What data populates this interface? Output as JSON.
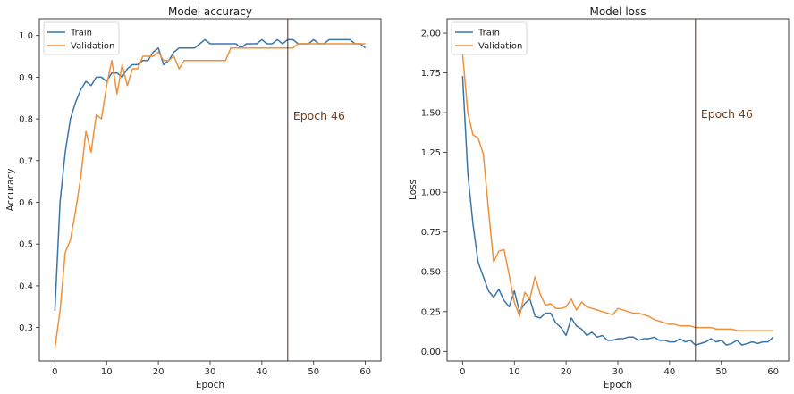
{
  "chart_data": [
    {
      "type": "line",
      "title": "Model accuracy",
      "xlabel": "Epoch",
      "ylabel": "Accuracy",
      "xlim": [
        -3,
        63
      ],
      "ylim": [
        0.22,
        1.04
      ],
      "xticks": [
        0,
        10,
        20,
        30,
        40,
        50,
        60
      ],
      "yticks": [
        0.3,
        0.4,
        0.5,
        0.6,
        0.7,
        0.8,
        0.9,
        1.0
      ],
      "legend": "top-left",
      "grid": false,
      "vline": {
        "x": 45,
        "label": "Epoch 46",
        "color": "#5a2a12"
      },
      "series": [
        {
          "name": "Train",
          "color": "#3b75a8",
          "values": [
            0.34,
            0.6,
            0.72,
            0.8,
            0.84,
            0.87,
            0.89,
            0.88,
            0.9,
            0.9,
            0.89,
            0.91,
            0.91,
            0.9,
            0.92,
            0.93,
            0.93,
            0.94,
            0.94,
            0.96,
            0.97,
            0.93,
            0.94,
            0.96,
            0.97,
            0.97,
            0.97,
            0.97,
            0.98,
            0.99,
            0.98,
            0.98,
            0.98,
            0.98,
            0.98,
            0.98,
            0.97,
            0.98,
            0.98,
            0.98,
            0.99,
            0.98,
            0.98,
            0.99,
            0.98,
            0.99,
            0.99,
            0.98,
            0.98,
            0.98,
            0.99,
            0.98,
            0.98,
            0.99,
            0.99,
            0.99,
            0.99,
            0.99,
            0.98,
            0.98,
            0.97
          ]
        },
        {
          "name": "Validation",
          "color": "#f0913a",
          "values": [
            0.25,
            0.34,
            0.48,
            0.51,
            0.58,
            0.66,
            0.77,
            0.72,
            0.81,
            0.8,
            0.88,
            0.94,
            0.86,
            0.93,
            0.88,
            0.92,
            0.92,
            0.95,
            0.95,
            0.95,
            0.96,
            0.94,
            0.94,
            0.95,
            0.92,
            0.94,
            0.94,
            0.94,
            0.94,
            0.94,
            0.94,
            0.94,
            0.94,
            0.94,
            0.97,
            0.97,
            0.97,
            0.97,
            0.97,
            0.97,
            0.97,
            0.97,
            0.97,
            0.97,
            0.97,
            0.97,
            0.97,
            0.98,
            0.98,
            0.98,
            0.98,
            0.98,
            0.98,
            0.98,
            0.98,
            0.98,
            0.98,
            0.98,
            0.98,
            0.98,
            0.98
          ]
        }
      ]
    },
    {
      "type": "line",
      "title": "Model loss",
      "xlabel": "Epoch",
      "ylabel": "Loss",
      "xlim": [
        -3,
        63
      ],
      "ylim": [
        -0.06,
        2.09
      ],
      "xticks": [
        0,
        10,
        20,
        30,
        40,
        50,
        60
      ],
      "yticks": [
        0.0,
        0.25,
        0.5,
        0.75,
        1.0,
        1.25,
        1.5,
        1.75,
        2.0
      ],
      "yticklabels": [
        "0.00",
        "0.25",
        "0.50",
        "0.75",
        "1.00",
        "1.25",
        "1.50",
        "1.75",
        "2.00"
      ],
      "legend": "top-left",
      "grid": false,
      "vline": {
        "x": 45,
        "label": "Epoch 46",
        "color": "#5a2a12"
      },
      "series": [
        {
          "name": "Train",
          "color": "#3b75a8",
          "values": [
            1.73,
            1.12,
            0.8,
            0.56,
            0.47,
            0.38,
            0.34,
            0.39,
            0.32,
            0.28,
            0.38,
            0.25,
            0.3,
            0.33,
            0.22,
            0.21,
            0.24,
            0.24,
            0.18,
            0.15,
            0.1,
            0.21,
            0.16,
            0.14,
            0.1,
            0.12,
            0.09,
            0.1,
            0.07,
            0.07,
            0.08,
            0.08,
            0.09,
            0.09,
            0.07,
            0.08,
            0.08,
            0.09,
            0.07,
            0.07,
            0.06,
            0.06,
            0.08,
            0.06,
            0.07,
            0.04,
            0.05,
            0.06,
            0.08,
            0.06,
            0.07,
            0.04,
            0.05,
            0.07,
            0.04,
            0.05,
            0.06,
            0.05,
            0.06,
            0.06,
            0.09
          ]
        },
        {
          "name": "Validation",
          "color": "#f0913a",
          "values": [
            1.87,
            1.5,
            1.36,
            1.34,
            1.24,
            0.89,
            0.56,
            0.63,
            0.64,
            0.48,
            0.31,
            0.22,
            0.37,
            0.33,
            0.47,
            0.36,
            0.29,
            0.3,
            0.27,
            0.27,
            0.28,
            0.33,
            0.26,
            0.31,
            0.28,
            0.27,
            0.26,
            0.25,
            0.24,
            0.23,
            0.27,
            0.26,
            0.25,
            0.24,
            0.24,
            0.23,
            0.22,
            0.2,
            0.19,
            0.18,
            0.17,
            0.17,
            0.16,
            0.16,
            0.16,
            0.15,
            0.15,
            0.15,
            0.15,
            0.14,
            0.14,
            0.14,
            0.14,
            0.13,
            0.13,
            0.13,
            0.13,
            0.13,
            0.13,
            0.13,
            0.13
          ]
        }
      ]
    }
  ]
}
